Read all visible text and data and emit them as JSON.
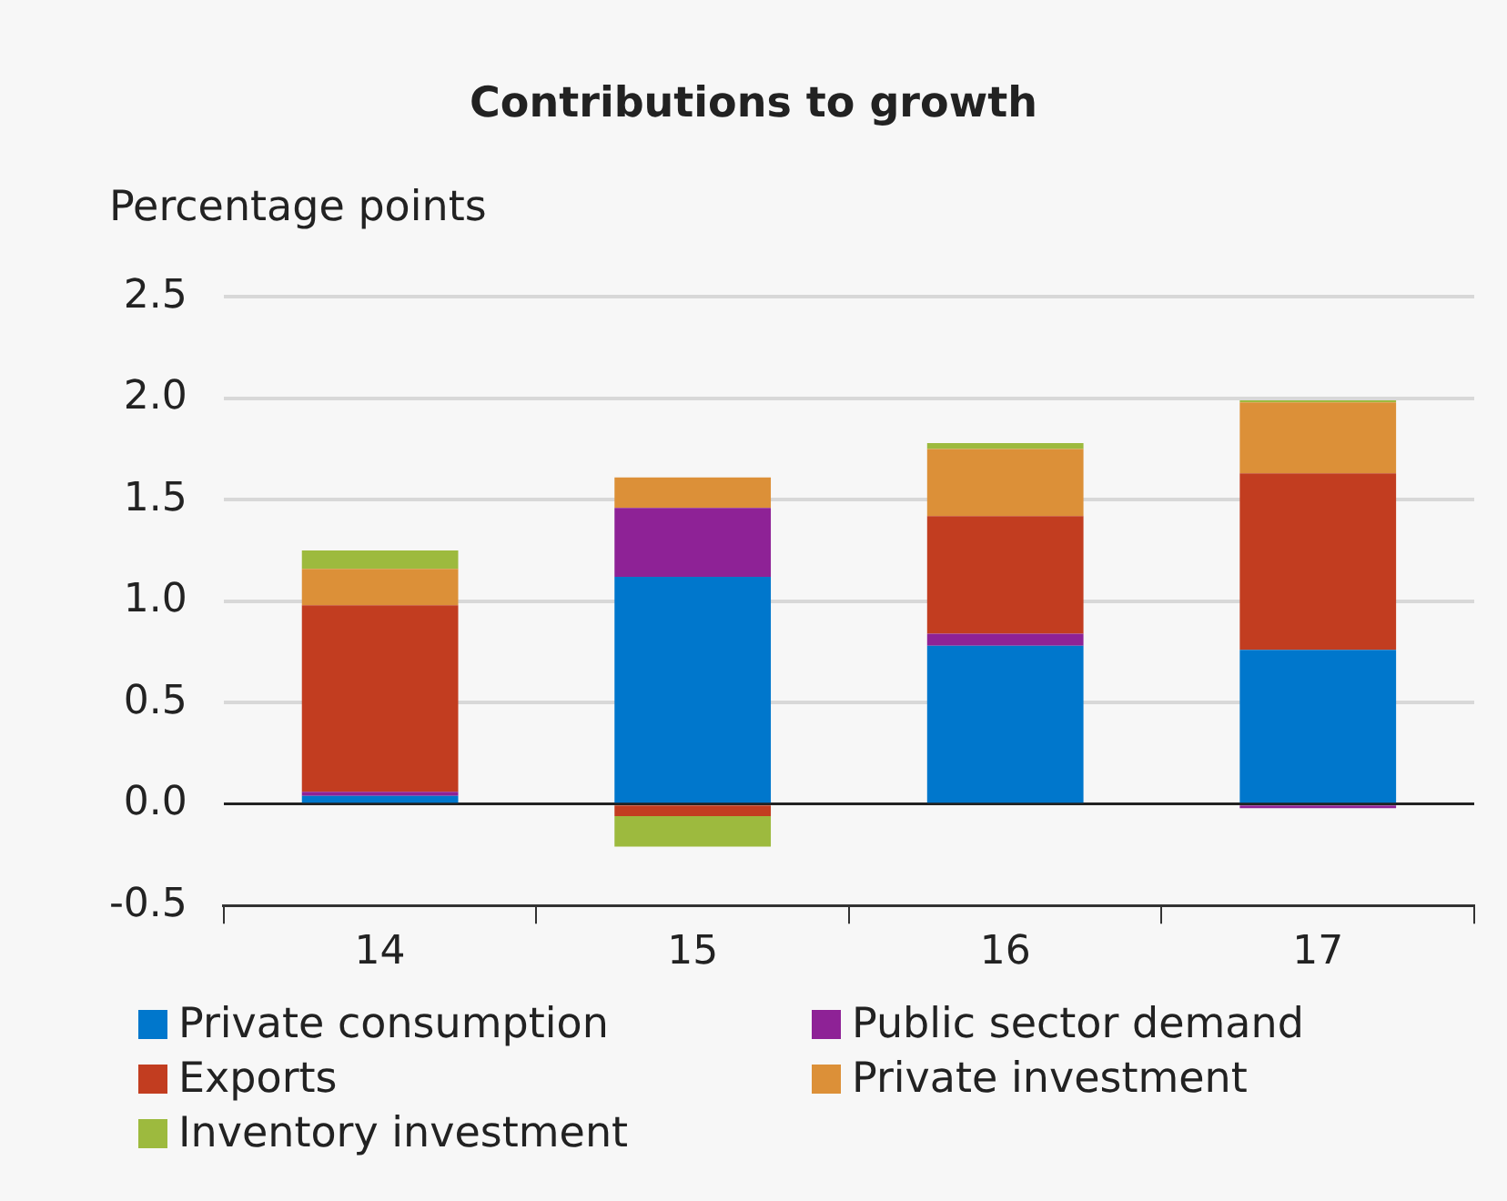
{
  "chart_data": {
    "type": "bar",
    "title": "Contributions to growth",
    "ylabel": "Percentage points",
    "categories": [
      "14",
      "15",
      "16",
      "17"
    ],
    "stacked": true,
    "ylim": [
      -0.5,
      2.5
    ],
    "yticks": [
      {
        "value": -0.5,
        "label": "-0.5"
      },
      {
        "value": 0,
        "label": "0.0"
      },
      {
        "value": 0.5,
        "label": "0.5"
      },
      {
        "value": 1,
        "label": "1.0"
      },
      {
        "value": 1.5,
        "label": "1.5"
      },
      {
        "value": 2,
        "label": "2.0"
      },
      {
        "value": 2.5,
        "label": "2.5"
      }
    ],
    "grid": "y",
    "legend": "bottom",
    "series": [
      {
        "name": "Private consumption",
        "color": "#0077cc",
        "values": [
          0.04,
          1.12,
          0.78,
          0.76
        ]
      },
      {
        "name": "Public sector demand",
        "color": "#8e2296",
        "values": [
          0.02,
          0.34,
          0.06,
          -0.02
        ]
      },
      {
        "name": "Exports",
        "color": "#c23d20",
        "values": [
          0.92,
          -0.06,
          0.58,
          0.87
        ]
      },
      {
        "name": "Private investment",
        "color": "#dc9038",
        "values": [
          0.18,
          0.15,
          0.33,
          0.35
        ]
      },
      {
        "name": "Inventory investment",
        "color": "#9dba3e",
        "values": [
          0.09,
          -0.15,
          0.03,
          0.01
        ]
      }
    ]
  }
}
